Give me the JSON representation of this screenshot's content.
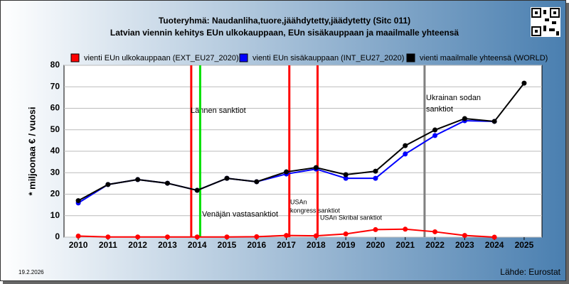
{
  "chart_data": {
    "type": "line",
    "title": "Tuoteryhmä: Naudanliha,tuore,jäähdytetty,jäädytetty (Sitc 011)",
    "subtitle": "Latvian viennin kehitys EUn ulkokauppaan, EUn sisäkauppaan ja maailmalle yhteensä",
    "y_label": "* miljoonaa € / vuosi",
    "date": "19.2.2026",
    "source": "Lähde: Eurostat",
    "x": [
      2010,
      2011,
      2012,
      2013,
      2014,
      2015,
      2016,
      2017,
      2018,
      2019,
      2020,
      2021,
      2022,
      2023,
      2024,
      2025
    ],
    "series": [
      {
        "name": "vienti EUn ulkokauppaan (EXT_EU27_2020)",
        "color": "#ff0000",
        "values": [
          0.5,
          0.1,
          0.1,
          0.1,
          0.1,
          0.1,
          0.2,
          0.8,
          0.6,
          1.5,
          3.5,
          3.7,
          2.5,
          0.8,
          0,
          null
        ]
      },
      {
        "name": "vienti EUn sisäkauppaan (INT_EU27_2020)",
        "color": "#0000ff",
        "values": [
          15.9,
          24.5,
          26.8,
          25.1,
          21.8,
          27.4,
          25.8,
          29.4,
          31.7,
          27.4,
          27.4,
          38.7,
          47.3,
          54.2,
          53.9,
          null
        ]
      },
      {
        "name": "vienti maailmalle yhteensä (WORLD)",
        "color": "#000000",
        "values": [
          17,
          24.5,
          26.8,
          25.1,
          21.8,
          27.4,
          25.8,
          30.4,
          32.4,
          29.1,
          30.7,
          42.6,
          49.9,
          55.2,
          53.9,
          71.7
        ]
      }
    ],
    "events": [
      {
        "x": 2013.8,
        "color": "#ff0000",
        "label": "Lännen sanktiot"
      },
      {
        "x": 2014.1,
        "color": "#00e000",
        "label": "Venäjän vastasanktiot"
      },
      {
        "x": 2017.1,
        "color": "#ff0000",
        "label": [
          "USAn",
          "kongress sanktiot"
        ]
      },
      {
        "x": 2018.05,
        "color": "#ff0000",
        "label": "USAn Skribal sanktiot"
      },
      {
        "x": 2021.65,
        "color": "#808080",
        "label": [
          "Ukrainan sodan",
          "sanktiot"
        ]
      }
    ],
    "xlim": [
      2009.52,
      2025.6
    ],
    "xticks": [
      2010,
      2011,
      2012,
      2013,
      2014,
      2015,
      2016,
      2017,
      2018,
      2019,
      2020,
      2021,
      2022,
      2023,
      2024,
      2025
    ],
    "ylim": [
      0,
      80
    ],
    "yticks": [
      0,
      10,
      20,
      30,
      40,
      50,
      60,
      70,
      80
    ],
    "grid": true
  }
}
